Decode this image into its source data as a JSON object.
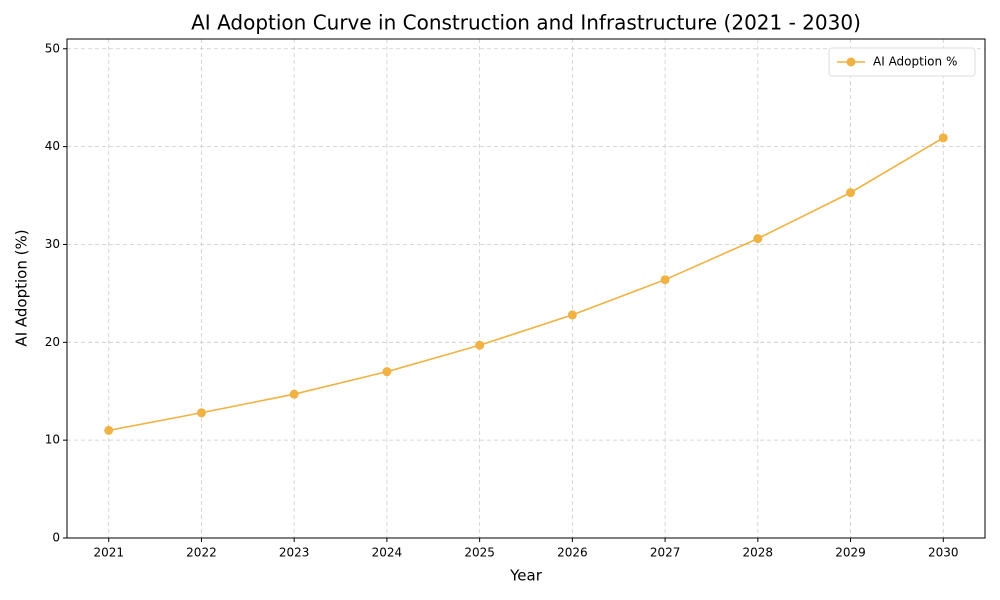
{
  "chart_data": {
    "type": "line",
    "title": "AI Adoption Curve in Construction and Infrastructure (2021 - 2030)",
    "xlabel": "Year",
    "ylabel": "AI Adoption (%)",
    "x": [
      2021,
      2022,
      2023,
      2024,
      2025,
      2026,
      2027,
      2028,
      2029,
      2030
    ],
    "series": [
      {
        "name": "AI Adoption %",
        "color": "#f0b242",
        "values": [
          11.0,
          12.8,
          14.7,
          17.0,
          19.7,
          22.8,
          26.4,
          30.6,
          35.3,
          40.9
        ]
      }
    ],
    "xlim": [
      2020.55,
      2030.45
    ],
    "xticks": [
      2021,
      2022,
      2023,
      2024,
      2025,
      2026,
      2027,
      2028,
      2029,
      2030
    ],
    "ylim": [
      0,
      51
    ],
    "yticks": [
      0,
      10,
      20,
      30,
      40,
      50
    ],
    "grid": true,
    "legend": "upper right"
  }
}
